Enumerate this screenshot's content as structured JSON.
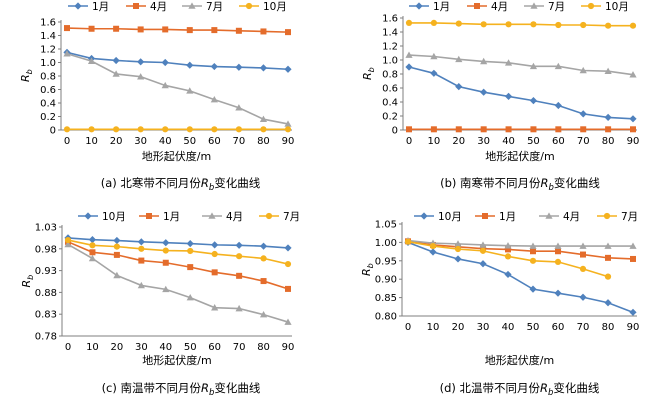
{
  "chart_data": [
    {
      "type": "line",
      "caption": "(a) 北寒带不同月份Rb变化曲线",
      "xlabel": "地形起伏度/m",
      "ylabel": "Rb",
      "x": [
        0,
        10,
        20,
        30,
        40,
        50,
        60,
        70,
        80,
        90
      ],
      "ylim": [
        0,
        1.6
      ],
      "yticks": [
        0,
        0.2,
        0.4,
        0.6,
        0.8,
        1.0,
        1.2,
        1.4,
        1.6
      ],
      "ytick_labels": [
        "0",
        "0.2",
        "0.4",
        "0.6",
        "0.8",
        "1.0",
        "1.2",
        "1.4",
        "1.6"
      ],
      "legend_position": "top",
      "series": [
        {
          "name": "1月",
          "color": "#4f81bd",
          "marker": "diamond",
          "values": [
            1.15,
            1.06,
            1.03,
            1.01,
            1.0,
            0.96,
            0.94,
            0.93,
            0.92,
            0.9
          ]
        },
        {
          "name": "4月",
          "color": "#e46c2b",
          "marker": "square",
          "values": [
            1.51,
            1.5,
            1.5,
            1.49,
            1.49,
            1.48,
            1.48,
            1.47,
            1.46,
            1.45
          ]
        },
        {
          "name": "7月",
          "color": "#a5a5a5",
          "marker": "triangle",
          "values": [
            1.13,
            1.02,
            0.83,
            0.79,
            0.66,
            0.58,
            0.45,
            0.33,
            0.16,
            0.09
          ]
        },
        {
          "name": "10月",
          "color": "#f5b21f",
          "marker": "circle",
          "values": [
            0.01,
            0.01,
            0.01,
            0.01,
            0.01,
            0.01,
            0.01,
            0.01,
            0.01,
            0.01
          ]
        }
      ]
    },
    {
      "type": "line",
      "caption": "(b) 南寒带不同月份Rb变化曲线",
      "xlabel": "地形起伏度/m",
      "ylabel": "Rb",
      "x": [
        0,
        10,
        20,
        30,
        40,
        50,
        60,
        70,
        80,
        90
      ],
      "ylim": [
        0,
        1.6
      ],
      "yticks": [
        0,
        0.2,
        0.4,
        0.6,
        0.8,
        1.0,
        1.2,
        1.4,
        1.6
      ],
      "ytick_labels": [
        "0",
        "0.2",
        "0.4",
        "0.6",
        "0.8",
        "1.0",
        "1.2",
        "1.4",
        "1.6"
      ],
      "legend_position": "top",
      "series": [
        {
          "name": "1月",
          "color": "#4f81bd",
          "marker": "diamond",
          "values": [
            0.9,
            0.81,
            0.62,
            0.54,
            0.48,
            0.42,
            0.35,
            0.23,
            0.18,
            0.16
          ]
        },
        {
          "name": "4月",
          "color": "#e46c2b",
          "marker": "square",
          "values": [
            0.01,
            0.01,
            0.01,
            0.01,
            0.01,
            0.01,
            0.01,
            0.01,
            0.01,
            0.01
          ]
        },
        {
          "name": "7月",
          "color": "#a5a5a5",
          "marker": "triangle",
          "values": [
            1.07,
            1.05,
            1.01,
            0.98,
            0.96,
            0.91,
            0.91,
            0.85,
            0.84,
            0.79
          ]
        },
        {
          "name": "10月",
          "color": "#f5b21f",
          "marker": "circle",
          "values": [
            1.53,
            1.53,
            1.52,
            1.51,
            1.51,
            1.51,
            1.5,
            1.5,
            1.49,
            1.49
          ]
        }
      ]
    },
    {
      "type": "line",
      "caption": "(c) 南温带不同月份Rb变化曲线",
      "xlabel": "地形起伏度/m",
      "ylabel": "Rb",
      "x": [
        0,
        10,
        20,
        30,
        40,
        50,
        60,
        70,
        80,
        90
      ],
      "ylim": [
        0.78,
        1.03
      ],
      "yticks": [
        0.78,
        0.83,
        0.88,
        0.93,
        0.98,
        1.03
      ],
      "ytick_labels": [
        "0.78",
        "0.83",
        "0.88",
        "0.93",
        "0.98",
        "1.03"
      ],
      "legend_position": "top",
      "series": [
        {
          "name": "10月",
          "color": "#4f81bd",
          "marker": "diamond",
          "values": [
            1.005,
            1.001,
            0.999,
            0.996,
            0.994,
            0.992,
            0.989,
            0.988,
            0.986,
            0.982
          ]
        },
        {
          "name": "1月",
          "color": "#e46c2b",
          "marker": "square",
          "values": [
            0.996,
            0.972,
            0.966,
            0.953,
            0.948,
            0.938,
            0.926,
            0.918,
            0.906,
            0.888
          ]
        },
        {
          "name": "4月",
          "color": "#a5a5a5",
          "marker": "triangle",
          "values": [
            0.99,
            0.958,
            0.919,
            0.896,
            0.887,
            0.868,
            0.845,
            0.843,
            0.829,
            0.812
          ]
        },
        {
          "name": "7月",
          "color": "#f5b21f",
          "marker": "circle",
          "values": [
            1.0,
            0.988,
            0.985,
            0.98,
            0.976,
            0.975,
            0.968,
            0.963,
            0.958,
            0.945
          ]
        }
      ]
    },
    {
      "type": "line",
      "caption": "(d) 北温带不同月份Rb变化曲线",
      "xlabel": "地形起伏度/m",
      "ylabel": "Rb",
      "x": [
        0,
        10,
        20,
        30,
        40,
        50,
        60,
        70,
        80,
        90
      ],
      "ylim": [
        0.8,
        1.05
      ],
      "yticks": [
        0.8,
        0.85,
        0.9,
        0.95,
        1.0,
        1.05
      ],
      "ytick_labels": [
        "0.80",
        "0.85",
        "0.90",
        "0.95",
        "1.00",
        "1.05"
      ],
      "legend_position": "top",
      "series": [
        {
          "name": "10月",
          "color": "#4f81bd",
          "marker": "diamond",
          "values": [
            1.0,
            0.974,
            0.955,
            0.942,
            0.913,
            0.873,
            0.862,
            0.851,
            0.836,
            0.81
          ]
        },
        {
          "name": "1月",
          "color": "#e46c2b",
          "marker": "square",
          "values": [
            1.003,
            0.993,
            0.988,
            0.983,
            0.981,
            0.976,
            0.976,
            0.967,
            0.958,
            0.955
          ]
        },
        {
          "name": "4月",
          "color": "#a5a5a5",
          "marker": "triangle",
          "values": [
            1.005,
            0.998,
            0.996,
            0.993,
            0.991,
            0.99,
            0.99,
            0.99,
            0.99,
            0.99
          ]
        },
        {
          "name": "7月",
          "color": "#f5b21f",
          "marker": "circle",
          "values": [
            1.002,
            0.99,
            0.982,
            0.977,
            0.962,
            0.95,
            0.947,
            0.928,
            0.907,
            null
          ]
        }
      ]
    }
  ]
}
